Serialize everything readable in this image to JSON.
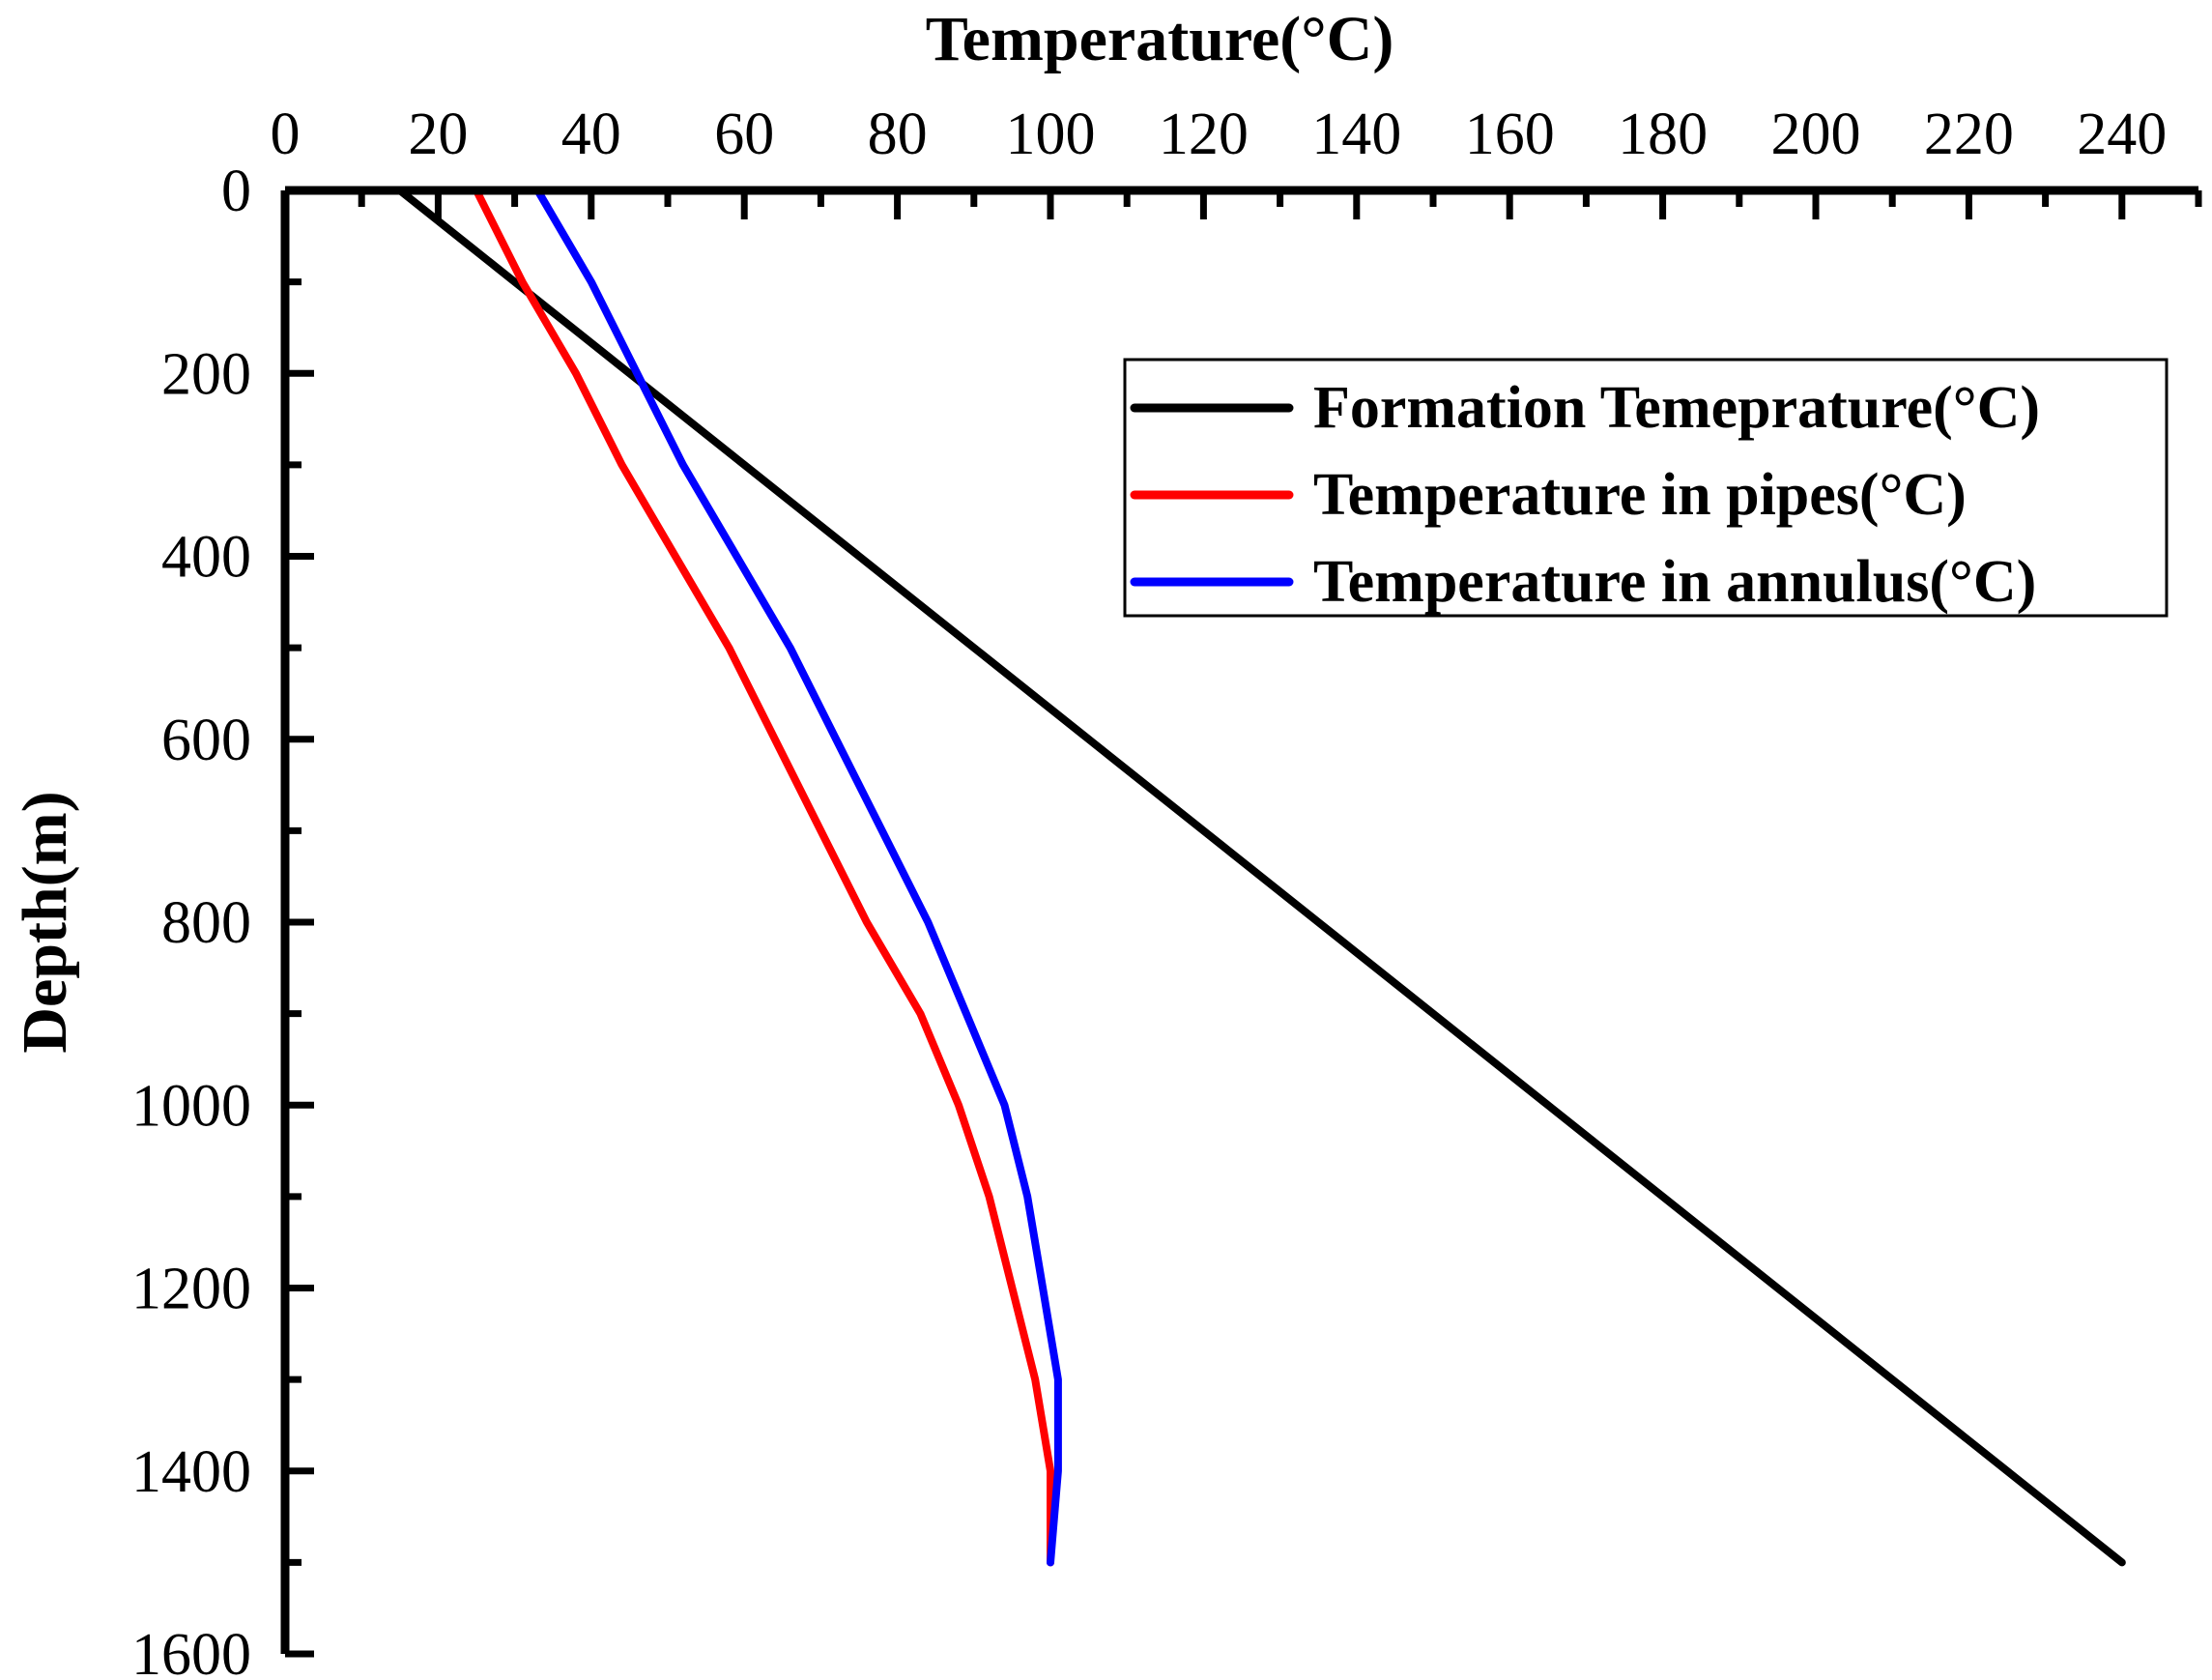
{
  "chart_data": {
    "type": "line",
    "title": "",
    "xlabel": "Temperature(°C)",
    "ylabel": "Depth(m)",
    "xlim": [
      0,
      250
    ],
    "ylim": [
      0,
      1600
    ],
    "y_inverted": true,
    "x_axis_position": "top",
    "x_ticks": [
      0,
      20,
      40,
      60,
      80,
      100,
      120,
      140,
      160,
      180,
      200,
      220,
      240
    ],
    "y_ticks": [
      0,
      200,
      400,
      600,
      800,
      1000,
      1200,
      1400,
      1600
    ],
    "grid": false,
    "legend_position": "top-right",
    "series": [
      {
        "name": "Formation Temeprature(°C)",
        "color": "#000000",
        "points": [
          [
            15,
            0
          ],
          [
            30,
            100
          ],
          [
            45,
            200
          ],
          [
            60,
            300
          ],
          [
            75,
            400
          ],
          [
            90,
            500
          ],
          [
            105,
            600
          ],
          [
            120,
            700
          ],
          [
            135,
            800
          ],
          [
            150,
            900
          ],
          [
            165,
            1000
          ],
          [
            180,
            1100
          ],
          [
            195,
            1200
          ],
          [
            210,
            1300
          ],
          [
            225,
            1400
          ],
          [
            240,
            1500
          ]
        ]
      },
      {
        "name": "Temperature in pipes(°C)",
        "color": "#ff0000",
        "points": [
          [
            25,
            0
          ],
          [
            31,
            100
          ],
          [
            38,
            200
          ],
          [
            44,
            300
          ],
          [
            51,
            400
          ],
          [
            58,
            500
          ],
          [
            64,
            600
          ],
          [
            70,
            700
          ],
          [
            76,
            800
          ],
          [
            83,
            900
          ],
          [
            88,
            1000
          ],
          [
            92,
            1100
          ],
          [
            95,
            1200
          ],
          [
            98,
            1300
          ],
          [
            100,
            1400
          ],
          [
            100,
            1500
          ]
        ]
      },
      {
        "name": "Temperature in annulus(°C)",
        "color": "#0000ff",
        "points": [
          [
            33,
            0
          ],
          [
            40,
            100
          ],
          [
            46,
            200
          ],
          [
            52,
            300
          ],
          [
            59,
            400
          ],
          [
            66,
            500
          ],
          [
            72,
            600
          ],
          [
            78,
            700
          ],
          [
            84,
            800
          ],
          [
            89,
            900
          ],
          [
            94,
            1000
          ],
          [
            97,
            1100
          ],
          [
            99,
            1200
          ],
          [
            101,
            1300
          ],
          [
            101,
            1400
          ],
          [
            100,
            1500
          ]
        ]
      }
    ]
  }
}
